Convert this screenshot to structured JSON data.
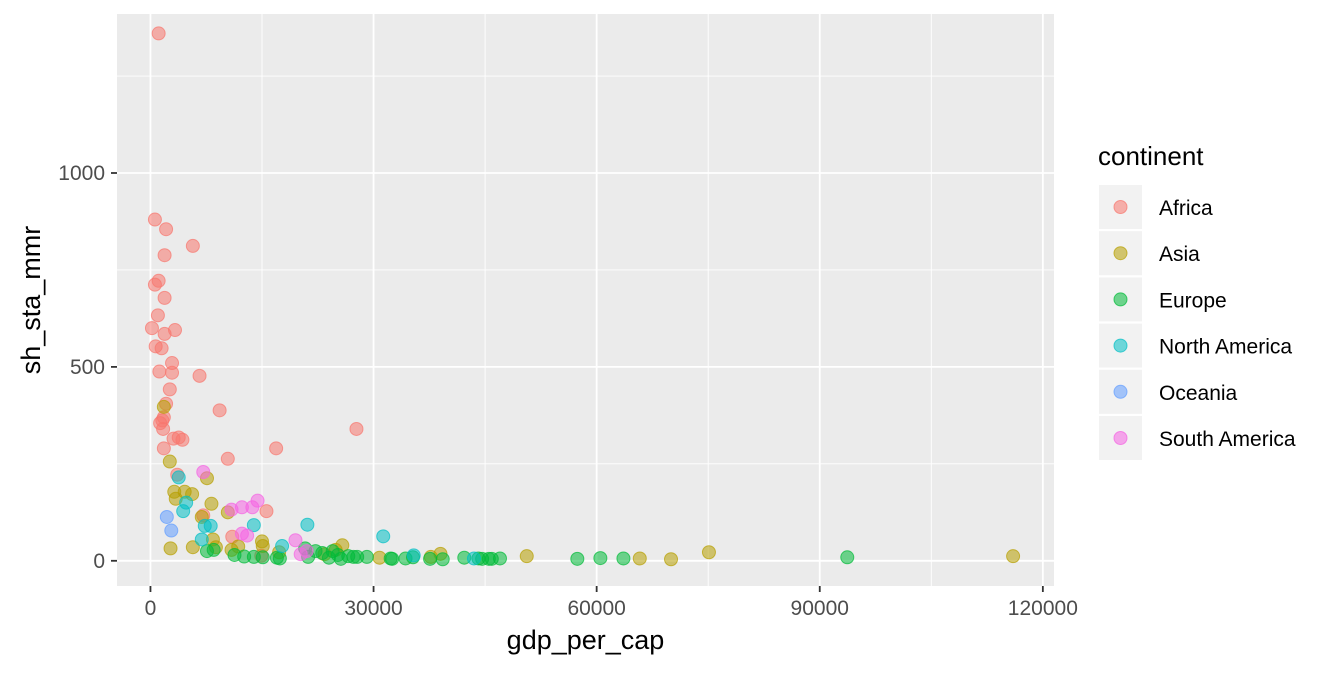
{
  "chart_data": {
    "type": "scatter",
    "title": "",
    "xlabel": "gdp_per_cap",
    "ylabel": "sh_sta_mmr",
    "xlim": [
      -4500,
      121500
    ],
    "ylim": [
      -65,
      1410
    ],
    "x_ticks": [
      0,
      30000,
      60000,
      90000,
      120000
    ],
    "x_tick_labels": [
      "0",
      "30000",
      "60000",
      "90000",
      "120000"
    ],
    "y_ticks": [
      0,
      500,
      1000
    ],
    "y_tick_labels": [
      "0",
      "500",
      "1000"
    ],
    "grid": true,
    "legend": {
      "title": "continent",
      "placement": "right"
    },
    "series": [
      {
        "name": "Africa",
        "color": "#F8766D",
        "points": [
          [
            1100,
            1360
          ],
          [
            600,
            880
          ],
          [
            2100,
            855
          ],
          [
            5700,
            812
          ],
          [
            1900,
            788
          ],
          [
            1100,
            722
          ],
          [
            600,
            712
          ],
          [
            1900,
            678
          ],
          [
            1000,
            633
          ],
          [
            200,
            600
          ],
          [
            3300,
            595
          ],
          [
            1900,
            585
          ],
          [
            700,
            553
          ],
          [
            1500,
            548
          ],
          [
            2900,
            510
          ],
          [
            1200,
            488
          ],
          [
            2900,
            485
          ],
          [
            6600,
            477
          ],
          [
            2600,
            442
          ],
          [
            2100,
            405
          ],
          [
            9300,
            388
          ],
          [
            1800,
            370
          ],
          [
            1600,
            362
          ],
          [
            1300,
            355
          ],
          [
            1700,
            340
          ],
          [
            27700,
            340
          ],
          [
            3100,
            315
          ],
          [
            4300,
            312
          ],
          [
            3800,
            318
          ],
          [
            16900,
            290
          ],
          [
            1800,
            290
          ],
          [
            10400,
            263
          ],
          [
            3600,
            222
          ],
          [
            7100,
            117
          ],
          [
            15600,
            128
          ],
          [
            11000,
            62
          ],
          [
            14900,
            13
          ]
        ]
      },
      {
        "name": "Asia",
        "color": "#B79F00",
        "points": [
          [
            1800,
            397
          ],
          [
            2600,
            256
          ],
          [
            7600,
            213
          ],
          [
            3200,
            178
          ],
          [
            4600,
            178
          ],
          [
            5600,
            172
          ],
          [
            3400,
            160
          ],
          [
            8200,
            147
          ],
          [
            10400,
            125
          ],
          [
            6900,
            113
          ],
          [
            2700,
            32
          ],
          [
            5700,
            35
          ],
          [
            8400,
            55
          ],
          [
            8800,
            35
          ],
          [
            10900,
            28
          ],
          [
            11800,
            37
          ],
          [
            15000,
            50
          ],
          [
            15100,
            38
          ],
          [
            17300,
            22
          ],
          [
            23400,
            17
          ],
          [
            24900,
            28
          ],
          [
            25800,
            40
          ],
          [
            30800,
            8
          ],
          [
            37700,
            10
          ],
          [
            39000,
            18
          ],
          [
            50600,
            12
          ],
          [
            65800,
            6
          ],
          [
            70000,
            4
          ],
          [
            75100,
            22
          ],
          [
            116000,
            12
          ]
        ]
      },
      {
        "name": "Europe",
        "color": "#00BA38",
        "points": [
          [
            7600,
            25
          ],
          [
            8500,
            28
          ],
          [
            11300,
            15
          ],
          [
            12600,
            11
          ],
          [
            13900,
            10
          ],
          [
            15100,
            9
          ],
          [
            17000,
            8
          ],
          [
            17400,
            6
          ],
          [
            20800,
            32
          ],
          [
            21200,
            10
          ],
          [
            22200,
            25
          ],
          [
            23100,
            20
          ],
          [
            24000,
            8
          ],
          [
            24500,
            25
          ],
          [
            25200,
            15
          ],
          [
            25600,
            5
          ],
          [
            26600,
            12
          ],
          [
            27300,
            10
          ],
          [
            27800,
            10
          ],
          [
            29100,
            10
          ],
          [
            32300,
            6
          ],
          [
            32500,
            5
          ],
          [
            34300,
            6
          ],
          [
            35300,
            9
          ],
          [
            37600,
            5
          ],
          [
            39300,
            4
          ],
          [
            42200,
            8
          ],
          [
            44100,
            6
          ],
          [
            44600,
            5
          ],
          [
            45500,
            5
          ],
          [
            45900,
            5
          ],
          [
            47000,
            6
          ],
          [
            57400,
            5
          ],
          [
            60500,
            7
          ],
          [
            63600,
            6
          ],
          [
            93700,
            9
          ]
        ]
      },
      {
        "name": "North America",
        "color": "#00BFC4",
        "points": [
          [
            3800,
            215
          ],
          [
            4800,
            150
          ],
          [
            4400,
            128
          ],
          [
            7300,
            90
          ],
          [
            8100,
            90
          ],
          [
            13900,
            92
          ],
          [
            21100,
            93
          ],
          [
            6900,
            55
          ],
          [
            31300,
            63
          ],
          [
            17700,
            38
          ],
          [
            35400,
            14
          ],
          [
            43500,
            6
          ]
        ]
      },
      {
        "name": "Oceania",
        "color": "#619CFF",
        "points": [
          [
            2200,
            113
          ],
          [
            2800,
            78
          ]
        ]
      },
      {
        "name": "South America",
        "color": "#F564E3",
        "points": [
          [
            7100,
            229
          ],
          [
            14400,
            155
          ],
          [
            12300,
            138
          ],
          [
            13700,
            138
          ],
          [
            10900,
            132
          ],
          [
            12300,
            70
          ],
          [
            13000,
            65
          ],
          [
            19500,
            53
          ],
          [
            20200,
            17
          ],
          [
            21000,
            25
          ]
        ]
      }
    ]
  }
}
